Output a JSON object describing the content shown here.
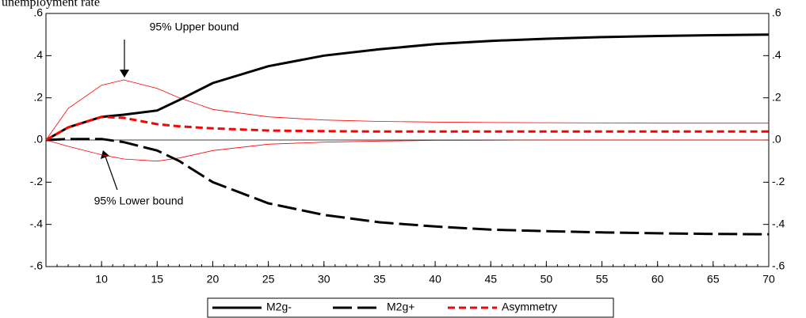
{
  "chart_data": {
    "type": "line",
    "title": "unemployment rate",
    "x": [
      5,
      7,
      10,
      12,
      15,
      17,
      20,
      25,
      30,
      35,
      40,
      45,
      50,
      55,
      60,
      65,
      70
    ],
    "series": [
      {
        "name": "M2g-",
        "color": "#000000",
        "style": "solid",
        "values": [
          0,
          0.06,
          0.11,
          0.12,
          0.14,
          0.19,
          0.27,
          0.35,
          0.4,
          0.43,
          0.455,
          0.47,
          0.48,
          0.488,
          0.493,
          0.497,
          0.5
        ]
      },
      {
        "name": "M2g+",
        "color": "#000000",
        "style": "longdash",
        "values": [
          0,
          0.005,
          0.005,
          -0.01,
          -0.05,
          -0.1,
          -0.2,
          -0.3,
          -0.355,
          -0.39,
          -0.41,
          -0.425,
          -0.432,
          -0.438,
          -0.442,
          -0.445,
          -0.447
        ]
      },
      {
        "name": "Asymmetry",
        "color": "#ff0000",
        "style": "dash",
        "values": [
          0,
          0.06,
          0.11,
          0.105,
          0.075,
          0.065,
          0.055,
          0.045,
          0.042,
          0.04,
          0.04,
          0.04,
          0.04,
          0.04,
          0.04,
          0.04,
          0.04
        ]
      }
    ],
    "bounds": {
      "color": "#ff0000",
      "upper": [
        0,
        0.15,
        0.26,
        0.285,
        0.245,
        0.2,
        0.145,
        0.11,
        0.095,
        0.088,
        0.085,
        0.083,
        0.082,
        0.081,
        0.08,
        0.08,
        0.08
      ],
      "lower": [
        0,
        -0.03,
        -0.07,
        -0.09,
        -0.1,
        -0.085,
        -0.05,
        -0.02,
        -0.01,
        -0.005,
        -0.002,
        -0.001,
        0,
        0,
        0,
        0,
        0
      ]
    },
    "annotations": [
      "95% Upper bound",
      "95% Lower bound"
    ],
    "xlim": [
      5,
      70
    ],
    "xticks": [
      10,
      15,
      20,
      25,
      30,
      35,
      40,
      45,
      50,
      55,
      60,
      65,
      70
    ],
    "ylim": [
      -0.6,
      0.6
    ],
    "yticks": [
      {
        "value": -0.6,
        "label": "-.6"
      },
      {
        "value": -0.4,
        "label": "-.4"
      },
      {
        "value": -0.2,
        "label": "-.2"
      },
      {
        "value": 0,
        "label": ".0"
      },
      {
        "value": 0.2,
        "label": ".2"
      },
      {
        "value": 0.4,
        "label": ".4"
      },
      {
        "value": 0.6,
        "label": ".6"
      }
    ],
    "legend": "bottom"
  }
}
